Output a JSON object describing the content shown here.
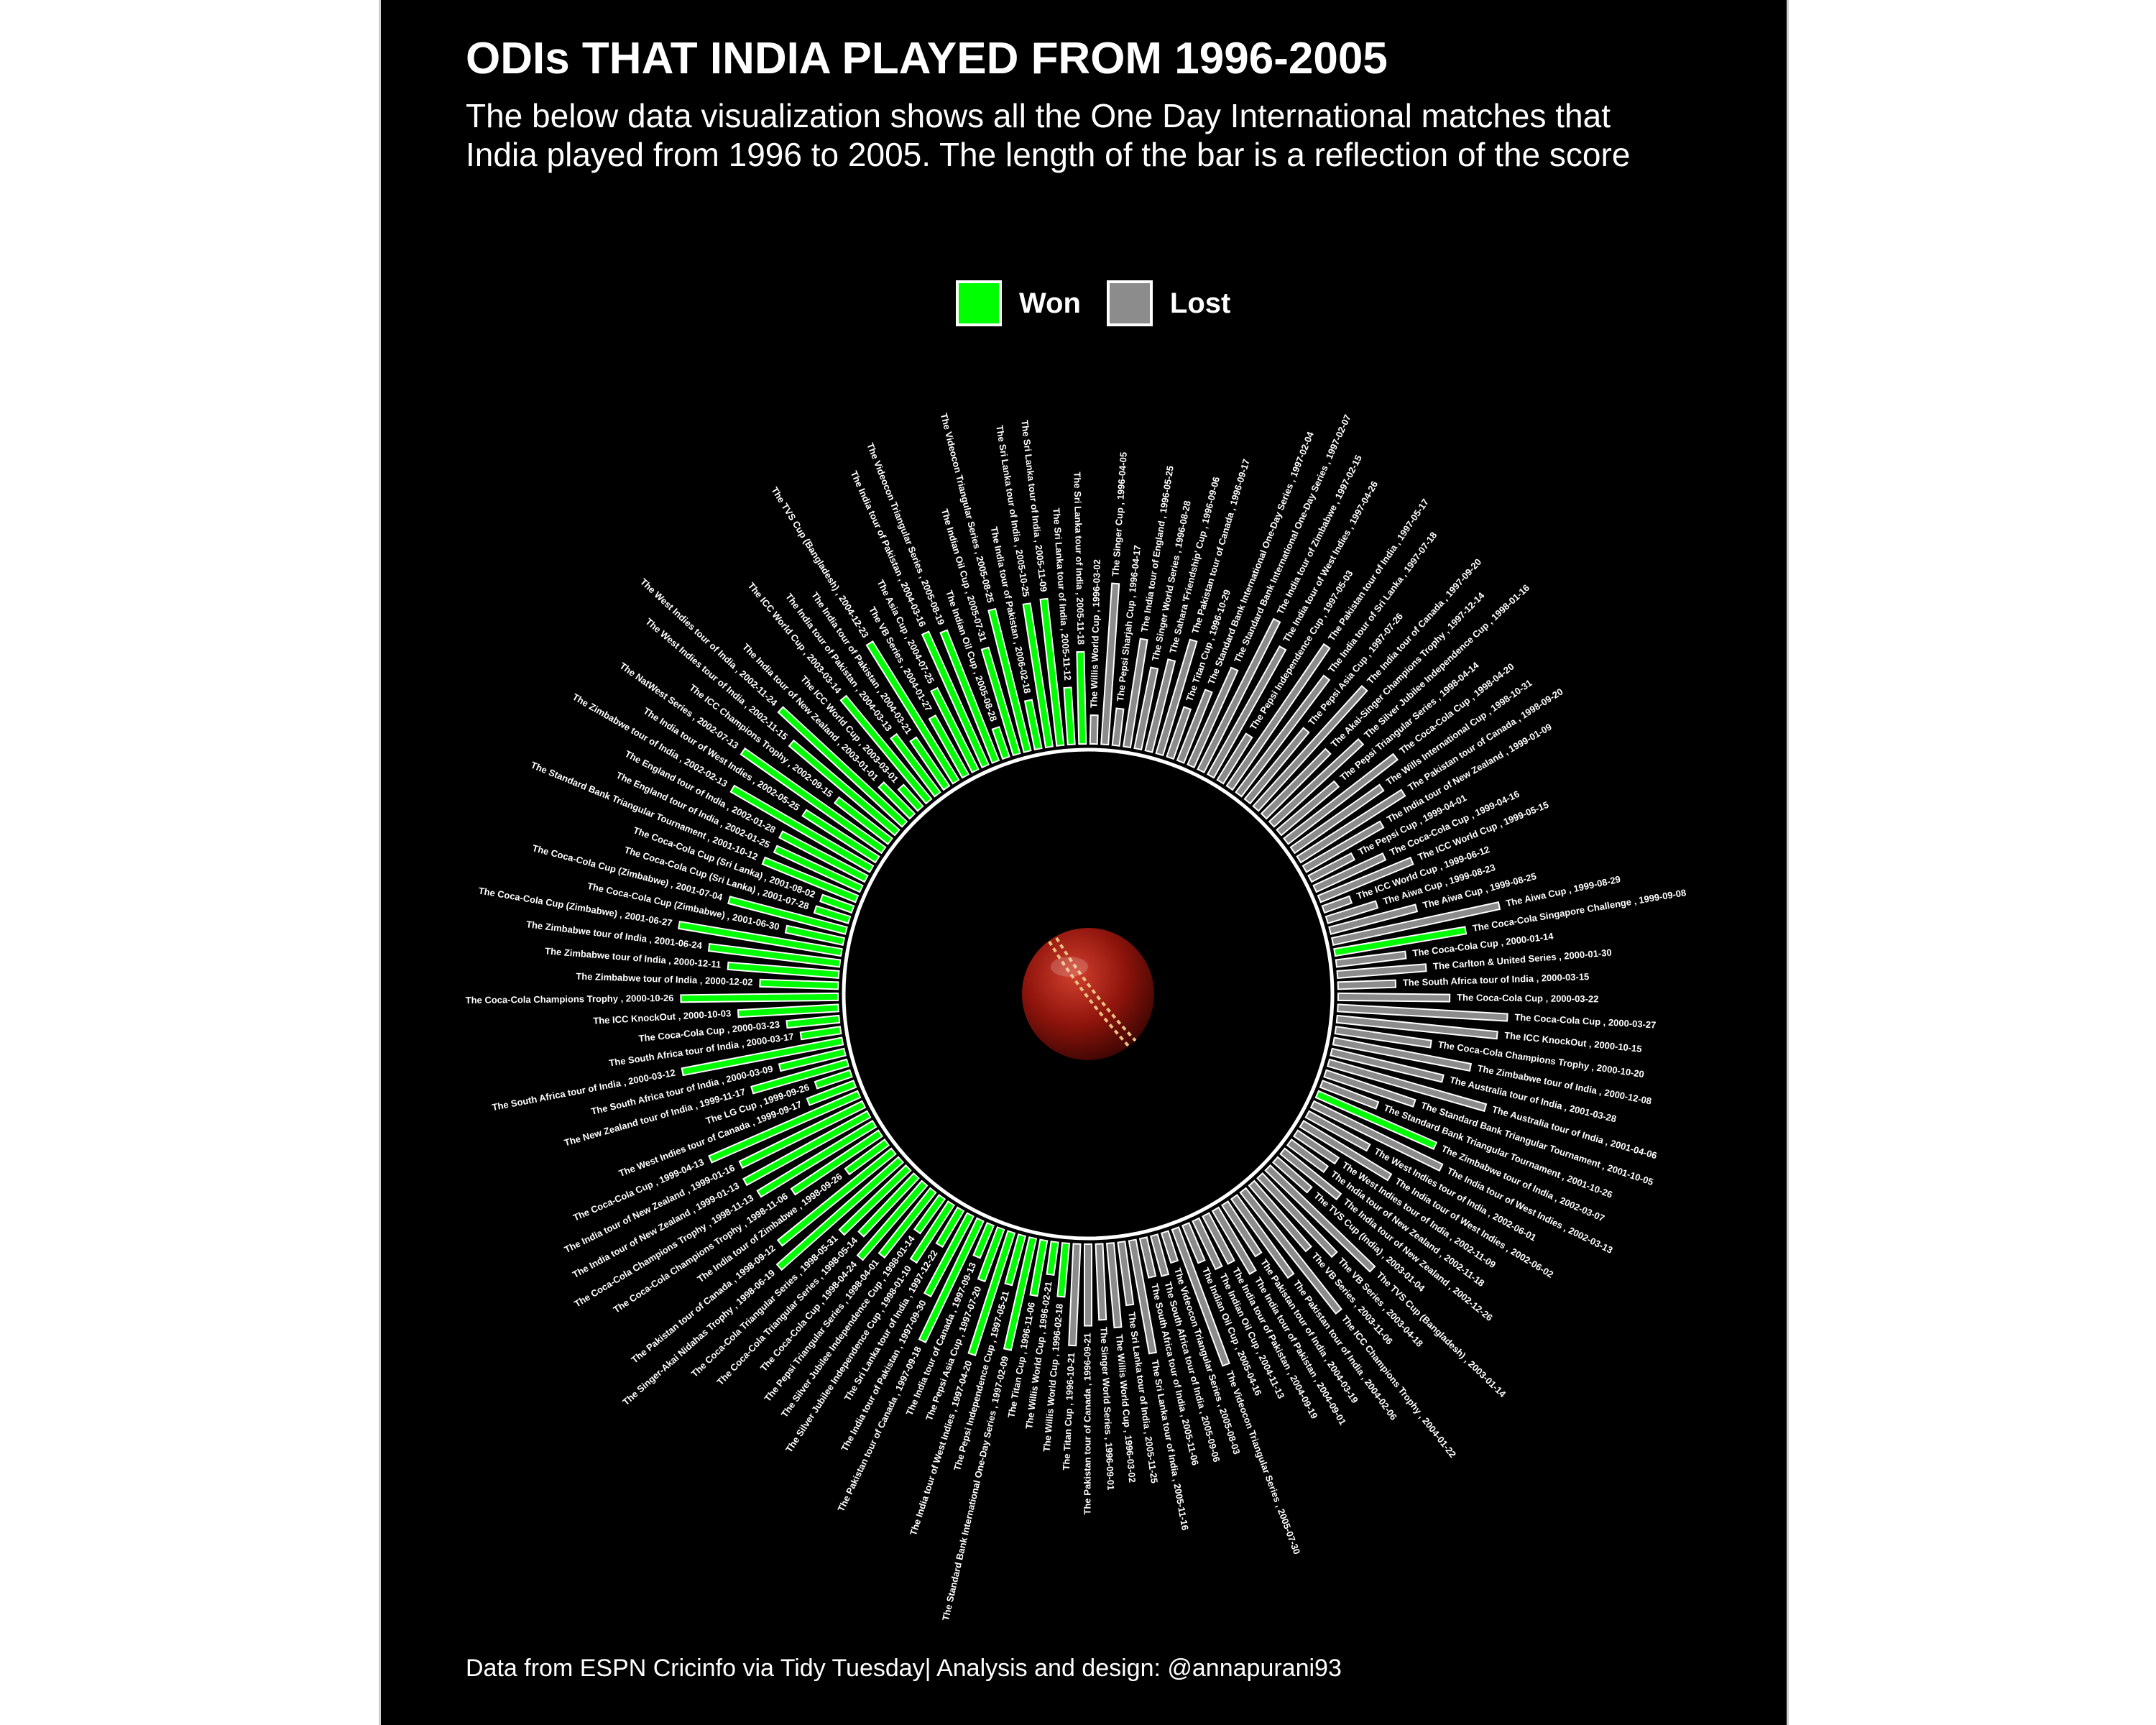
{
  "title": "ODIs THAT INDIA PLAYED FROM 1996-2005",
  "subtitle": "The below data visualization shows all the One Day International matches that India played from 1996 to 2005. The length of the bar is a reflection of the score",
  "caption": "Data from ESPN Cricinfo via Tidy Tuesday| Analysis and design: @annapurani93",
  "legend": [
    {
      "label": "Won",
      "color": "#00ff00"
    },
    {
      "label": "Lost",
      "color": "#8c8c8c"
    }
  ],
  "colors": {
    "background": "#000000",
    "won": "#00ff00",
    "lost": "#8c8c8c",
    "text": "#ffffff",
    "ball": "#a01810"
  },
  "center_icon": "cricket-ball-icon",
  "chart_data": {
    "type": "bar",
    "layout": "circular",
    "ylim": [
      0,
      1
    ],
    "series": [
      {
        "name": "Lost",
        "segment": "lost-north",
        "color": "#8c8c8c",
        "categories": [
          "The Willis World Cup , 1996-03-02",
          "The Singer Cup , 1996-04-05",
          "The Pepsi Sharjah Cup , 1996-04-17",
          "The India tour of England , 1996-05-25",
          "The Singer World Series , 1996-08-28",
          "The Sahara 'Friendship' Cup , 1996-09-06",
          "The Pakistan tour of Canada , 1996-09-17",
          "The Titan Cup , 1996-10-29",
          "The Standard Bank International One-Day Series , 1997-02-04",
          "The Standard Bank International One-Day Series , 1997-02-07",
          "The India tour of Zimbabwe , 1997-02-15",
          "The India tour of West Indies , 1997-04-26",
          "The Pepsi Independence Cup , 1997-05-03",
          "The Pakistan tour of India , 1997-05-17",
          "The India tour of Sri Lanka , 1997-07-18",
          "The Pepsi Asia Cup , 1997-07-26",
          "The India tour of Canada , 1997-09-20",
          "The Akai-Singer Champions Trophy , 1997-12-14",
          "The Silver Jubilee Independence Cup , 1998-01-16",
          "The Pepsi Triangular Series , 1998-04-14",
          "The Coca-Cola Cup , 1998-04-20",
          "The Wills International Cup , 1998-10-31",
          "The Pakistan tour of Canada , 1998-09-20",
          "The India tour of New Zealand , 1999-01-09",
          "The Pepsi Cup , 1999-04-01",
          "The Coca-Cola Cup , 1999-04-16",
          "The ICC World Cup , 1999-05-15",
          "The ICC World Cup , 1999-06-12",
          "The Aiwa Cup , 1999-08-23",
          "The Aiwa Cup , 1999-08-25",
          "The Aiwa Cup , 1999-08-29"
        ]
      },
      {
        "name": "Won",
        "segment": "won-east",
        "color": "#00ff00",
        "categories": [
          "The Coca-Cola Singapore Challenge , 1999-09-08"
        ]
      },
      {
        "name": "Lost",
        "segment": "lost-east",
        "color": "#8c8c8c",
        "categories": [
          "The Coca-Cola Cup , 2000-01-14",
          "The Carlton & United Series , 2000-01-30",
          "The South Africa tour of India , 2000-03-15",
          "The Coca-Cola Cup , 2000-03-22",
          "The Coca-Cola Cup , 2000-03-27",
          "The ICC KnockOut , 2000-10-15",
          "The Coca-Cola Champions Trophy , 2000-10-20",
          "The Zimbabwe tour of India , 2000-12-08",
          "The Australia tour of India , 2001-03-28",
          "The Australia tour of India , 2001-04-06",
          "The Standard Bank Triangular Tournament , 2001-10-05",
          "The Standard Bank Triangular Tournament , 2001-10-26"
        ]
      },
      {
        "name": "Won",
        "segment": "won-southeast",
        "color": "#00ff00",
        "categories": [
          "The Zimbabwe tour of India , 2002-03-07"
        ]
      },
      {
        "name": "Lost",
        "segment": "lost-south",
        "color": "#8c8c8c",
        "categories": [
          "The India tour of West Indies , 2002-03-13",
          "The West Indies tour of India , 2002-06-01",
          "The India tour of West Indies , 2002-06-02",
          "The West Indies tour of India , 2002-11-09",
          "The India tour of New Zealand , 2002-11-18",
          "The India tour of New Zealand , 2002-12-26",
          "The TVS Cup (India) , 2003-01-04",
          "The TVS Cup (Bangladesh) , 2003-01-14",
          "The VB Series , 2003-04-18",
          "The VB Series , 2003-11-06",
          "The ICC Champions Trophy , 2004-01-22",
          "The Pakistan tour of India , 2004-02-06",
          "The Pakistan tour of India , 2004-03-19",
          "The India tour of Pakistan , 2004-09-01",
          "The India tour of Pakistan , 2004-09-19",
          "The Indian Oil Cup , 2004-11-13",
          "The Indian Oil Cup , 2005-04-16",
          "The Videocon Triangular Series , 2005-07-30",
          "The Videocon Triangular Series , 2005-08-03",
          "The South Africa tour of India , 2005-09-06",
          "The South Africa tour of India , 2005-11-06",
          "The Sri Lanka tour of India , 2005-11-16",
          "The Sri Lanka tour of India , 2005-11-25",
          "The Willis World Cup , 1996-03-02",
          "The Singer World Series , 1996-09-01",
          "The Pakistan tour of Canada , 1996-09-21",
          "The Titan Cup , 1996-10-21"
        ]
      },
      {
        "name": "Won",
        "segment": "won-west",
        "color": "#00ff00",
        "categories": [
          "The Willis World Cup , 1996-02-18",
          "The Willis World Cup , 1996-02-21",
          "The Titan Cup , 1996-11-06",
          "The Standard Bank International One-Day Series , 1997-02-09",
          "The Pepsi Independence Cup , 1997-05-21",
          "The India tour of West Indies , 1997-04-20",
          "The Pepsi Asia Cup , 1997-07-20",
          "The India tour of Canada , 1997-09-13",
          "The Pakistan tour of Canada , 1997-09-18",
          "The India tour of Pakistan , 1997-09-30",
          "The Sri Lanka tour of India , 1997-12-22",
          "The Silver Jubilee Independence Cup , 1998-01-10",
          "The Silver Jubilee Independence Cup , 1998-01-14",
          "The Pepsi Triangular Series , 1998-04-01",
          "The Coca-Cola Cup , 1998-04-24",
          "The Coca-Cola Triangular Series , 1998-05-14",
          "The Coca-Cola Triangular Series , 1998-05-31",
          "The Singer-Akai Nidahas Trophy , 1998-06-19",
          "The Pakistan tour of Canada , 1998-09-12",
          "The India tour of Zimbabwe , 1998-09-26",
          "The Coca-Cola Champions Trophy , 1998-11-06",
          "The Coca-Cola Champions Trophy , 1998-11-13",
          "The India tour of New Zealand , 1999-01-13",
          "The India tour of New Zealand , 1999-01-16",
          "The Coca-Cola Cup , 1999-04-13",
          "The West Indies tour of Canada , 1999-09-17",
          "The LG Cup , 1999-09-26",
          "The New Zealand tour of India , 1999-11-17",
          "The South Africa tour of India , 2000-03-09",
          "The South Africa tour of India , 2000-03-12",
          "The South Africa tour of India , 2000-03-17",
          "The Coca-Cola Cup , 2000-03-23",
          "The ICC KnockOut , 2000-10-03",
          "The Coca-Cola Champions Trophy , 2000-10-26",
          "The Zimbabwe tour of India , 2000-12-02",
          "The Zimbabwe tour of India , 2000-12-11",
          "The Zimbabwe tour of India , 2001-06-24",
          "The Coca-Cola Cup (Zimbabwe) , 2001-06-27",
          "The Coca-Cola Cup (Zimbabwe) , 2001-06-30",
          "The Coca-Cola Cup (Zimbabwe) , 2001-07-04",
          "The Coca-Cola Cup (Sri Lanka) , 2001-07-28",
          "The Coca-Cola Cup (Sri Lanka) , 2001-08-02",
          "The Standard Bank Triangular Tournament , 2001-10-12",
          "The England tour of India , 2002-01-25",
          "The England tour of India , 2002-01-28",
          "The Zimbabwe tour of India , 2002-02-13",
          "The India tour of West Indies , 2002-05-25",
          "The NatWest Series , 2002-07-13",
          "The ICC Champions Trophy , 2002-09-15",
          "The West Indies tour of India , 2002-11-15",
          "The West Indies tour of India , 2002-11-24",
          "The India tour of New Zealand , 2003-01-01",
          "The ICC World Cup , 2003-03-01",
          "The ICC World Cup , 2003-03-14",
          "The India tour of Pakistan , 2004-03-13",
          "The India tour of Pakistan , 2004-03-21",
          "The TVS Cup (Bangladesh) , 2004-12-23",
          "The VB Series , 2004-01-27",
          "The Asia Cup , 2004-07-25",
          "The India tour of Pakistan , 2004-03-16",
          "The Videocon Triangular Series , 2005-08-19",
          "The Indian Oil Cup , 2005-08-28",
          "The Indian Oil Cup , 2005-07-31",
          "The Videocon Triangular Series , 2005-08-25",
          "The India tour of Pakistan , 2006-02-18",
          "The Sri Lanka tour of India , 2005-10-25",
          "The Sri Lanka tour of India , 2005-11-09",
          "The Sri Lanka tour of India , 2005-11-12",
          "The Sri Lanka tour of India , 2005-11-18"
        ]
      }
    ]
  }
}
